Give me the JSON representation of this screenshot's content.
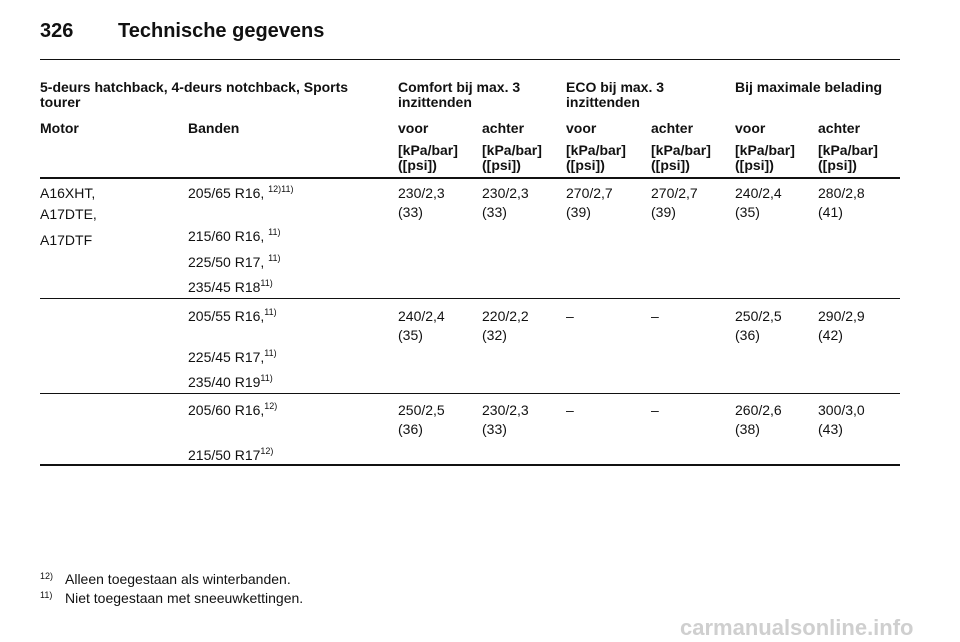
{
  "header": {
    "page_number": "326",
    "title": "Technische gegevens"
  },
  "table": {
    "group_headers": [
      "5-deurs hatchback, 4-deurs notchback, Sports tourer",
      "Comfort bij max. 3 inzittenden",
      "ECO bij max. 3 inzittenden",
      "Bij maximale belading"
    ],
    "column_headers": [
      "Motor",
      "Banden",
      "voor",
      "achter",
      "voor",
      "achter",
      "voor",
      "achter"
    ],
    "units": [
      [
        "[kPa/bar]",
        "([psi])"
      ],
      [
        "[kPa/bar]",
        "([psi])"
      ],
      [
        "[kPa/bar]",
        "([psi])"
      ],
      [
        "[kPa/bar]",
        "([psi])"
      ],
      [
        "[kPa/bar]",
        "([psi])"
      ],
      [
        "[kPa/bar]",
        "([psi])"
      ]
    ],
    "groups": [
      {
        "motors": [
          "A16XHT,",
          "A17DTE,",
          "A17DTF"
        ],
        "tyres": [
          {
            "size": "205/65 R16, ",
            "note": "12)11)"
          },
          {
            "size": "215/60 R16, ",
            "note": "11)"
          },
          {
            "size": "225/50 R17, ",
            "note": "11)"
          },
          {
            "size": "235/45 R18",
            "note": "11)"
          }
        ],
        "pressures": [
          [
            "230/2,3",
            "(33)"
          ],
          [
            "230/2,3",
            "(33)"
          ],
          [
            "270/2,7",
            "(39)"
          ],
          [
            "270/2,7",
            "(39)"
          ],
          [
            "240/2,4",
            "(35)"
          ],
          [
            "280/2,8",
            "(41)"
          ]
        ]
      },
      {
        "motors": [],
        "tyres": [
          {
            "size": "205/55 R16,",
            "note": "11)"
          },
          {
            "size": "225/45 R17,",
            "note": "11)"
          },
          {
            "size": "235/40 R19",
            "note": "11)"
          }
        ],
        "pressures": [
          [
            "240/2,4",
            "(35)"
          ],
          [
            "220/2,2",
            "(32)"
          ],
          [
            "–"
          ],
          [
            "–"
          ],
          [
            "250/2,5",
            "(36)"
          ],
          [
            "290/2,9",
            "(42)"
          ]
        ]
      },
      {
        "motors": [],
        "tyres": [
          {
            "size": "205/60 R16,",
            "note": "12)"
          },
          {
            "size": "215/50 R17",
            "note": "12)"
          }
        ],
        "pressures": [
          [
            "250/2,5",
            "(36)"
          ],
          [
            "230/2,3",
            "(33)"
          ],
          [
            "–"
          ],
          [
            "–"
          ],
          [
            "260/2,6",
            "(38)"
          ],
          [
            "300/3,0",
            "(43)"
          ]
        ]
      }
    ]
  },
  "footnotes": [
    {
      "mark": "12)",
      "text": "Alleen toegestaan als winterbanden."
    },
    {
      "mark": "11)",
      "text": "Niet toegestaan met sneeuwkettingen."
    }
  ],
  "watermark": "carmanualsonline.info"
}
